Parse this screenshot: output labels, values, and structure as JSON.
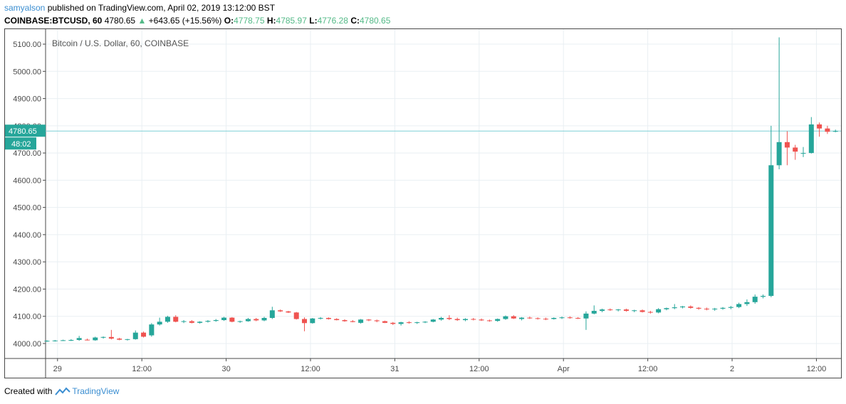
{
  "header": {
    "username": "samyalson",
    "published_text": " published on TradingView.com, April 02, 2019 13:12:00 BST",
    "symbol": "COINBASE:BTCUSD, 60",
    "last_price": "4780.65",
    "change": "+643.65 (+15.56%)",
    "open_label": "O:",
    "open": "4778.75",
    "high_label": "H:",
    "high": "4785.97",
    "low_label": "L:",
    "low": "4776.28",
    "close_label": "C:",
    "close": "4780.65",
    "up_color": "#53b987"
  },
  "footer": {
    "created_with": "Created with",
    "brand": "TradingView",
    "logo_icon": "tradingview-logo-icon"
  },
  "chart_data": {
    "type": "candlestick",
    "title": "Bitcoin / U.S. Dollar, 60, COINBASE",
    "ylim": [
      3945,
      5155
    ],
    "y_ticks": [
      "4000.00",
      "4100.00",
      "4200.00",
      "4300.00",
      "4400.00",
      "4500.00",
      "4600.00",
      "4700.00",
      "4800.00",
      "4900.00",
      "5000.00",
      "5100.00"
    ],
    "x_ticks": [
      {
        "label": "29",
        "hour": 0
      },
      {
        "label": "12:00",
        "hour": 12
      },
      {
        "label": "30",
        "hour": 24
      },
      {
        "label": "12:00",
        "hour": 36
      },
      {
        "label": "31",
        "hour": 48
      },
      {
        "label": "12:00",
        "hour": 60
      },
      {
        "label": "Apr",
        "hour": 72
      },
      {
        "label": "12:00",
        "hour": 84
      },
      {
        "label": "2",
        "hour": 96
      },
      {
        "label": "12:00",
        "hour": 108
      }
    ],
    "x_hour_range": [
      -1.7,
      111.5
    ],
    "last_price_tag": "4780.65",
    "countdown_tag": "48:02",
    "last_price_value": 4780.65,
    "up_color": "#26a69a",
    "down_color": "#ef5350",
    "grid": true,
    "candles_open_high_low_close": [
      [
        4008,
        4012,
        4006,
        4010
      ],
      [
        4010,
        4013,
        4007,
        4011
      ],
      [
        4011,
        4014,
        4009,
        4012
      ],
      [
        4012,
        4016,
        4009,
        4013
      ],
      [
        4013,
        4028,
        4010,
        4020
      ],
      [
        4014,
        4018,
        4011,
        4012
      ],
      [
        4012,
        4025,
        4010,
        4022
      ],
      [
        4022,
        4026,
        4018,
        4024
      ],
      [
        4024,
        4050,
        4015,
        4018
      ],
      [
        4018,
        4021,
        4012,
        4014
      ],
      [
        4014,
        4017,
        4011,
        4016
      ],
      [
        4016,
        4048,
        4014,
        4040
      ],
      [
        4040,
        4044,
        4022,
        4025
      ],
      [
        4030,
        4075,
        4025,
        4070
      ],
      [
        4070,
        4095,
        4066,
        4080
      ],
      [
        4080,
        4102,
        4076,
        4098
      ],
      [
        4098,
        4104,
        4078,
        4080
      ],
      [
        4080,
        4086,
        4075,
        4082
      ],
      [
        4082,
        4086,
        4074,
        4076
      ],
      [
        4076,
        4082,
        4073,
        4080
      ],
      [
        4080,
        4086,
        4077,
        4083
      ],
      [
        4083,
        4090,
        4080,
        4086
      ],
      [
        4086,
        4098,
        4083,
        4095
      ],
      [
        4095,
        4097,
        4078,
        4080
      ],
      [
        4080,
        4084,
        4076,
        4082
      ],
      [
        4082,
        4094,
        4080,
        4090
      ],
      [
        4090,
        4094,
        4082,
        4085
      ],
      [
        4085,
        4098,
        4082,
        4094
      ],
      [
        4094,
        4135,
        4090,
        4122
      ],
      [
        4122,
        4125,
        4116,
        4118
      ],
      [
        4118,
        4120,
        4112,
        4114
      ],
      [
        4114,
        4116,
        4088,
        4090
      ],
      [
        4090,
        4096,
        4045,
        4075
      ],
      [
        4075,
        4094,
        4073,
        4092
      ],
      [
        4092,
        4097,
        4088,
        4094
      ],
      [
        4094,
        4096,
        4088,
        4090
      ],
      [
        4090,
        4093,
        4085,
        4086
      ],
      [
        4086,
        4089,
        4080,
        4082
      ],
      [
        4082,
        4086,
        4078,
        4079
      ],
      [
        4076,
        4090,
        4073,
        4088
      ],
      [
        4088,
        4090,
        4082,
        4085
      ],
      [
        4085,
        4088,
        4078,
        4082
      ],
      [
        4082,
        4084,
        4075,
        4076
      ],
      [
        4076,
        4079,
        4068,
        4072
      ],
      [
        4072,
        4080,
        4066,
        4078
      ],
      [
        4078,
        4082,
        4073,
        4076
      ],
      [
        4076,
        4080,
        4072,
        4078
      ],
      [
        4078,
        4082,
        4075,
        4080
      ],
      [
        4080,
        4090,
        4078,
        4088
      ],
      [
        4088,
        4098,
        4084,
        4094
      ],
      [
        4094,
        4104,
        4086,
        4090
      ],
      [
        4090,
        4095,
        4083,
        4086
      ],
      [
        4086,
        4093,
        4082,
        4090
      ],
      [
        4090,
        4094,
        4085,
        4088
      ],
      [
        4088,
        4092,
        4083,
        4085
      ],
      [
        4085,
        4088,
        4080,
        4083
      ],
      [
        4083,
        4092,
        4080,
        4090
      ],
      [
        4090,
        4103,
        4087,
        4100
      ],
      [
        4100,
        4104,
        4090,
        4092
      ],
      [
        4090,
        4097,
        4085,
        4095
      ],
      [
        4095,
        4099,
        4090,
        4093
      ],
      [
        4093,
        4096,
        4088,
        4091
      ],
      [
        4091,
        4095,
        4086,
        4090
      ],
      [
        4090,
        4096,
        4088,
        4094
      ],
      [
        4094,
        4099,
        4090,
        4096
      ],
      [
        4096,
        4100,
        4091,
        4094
      ],
      [
        4094,
        4097,
        4090,
        4092
      ],
      [
        4092,
        4118,
        4050,
        4110
      ],
      [
        4110,
        4140,
        4107,
        4120
      ],
      [
        4120,
        4128,
        4115,
        4125
      ],
      [
        4125,
        4129,
        4120,
        4123
      ],
      [
        4123,
        4127,
        4118,
        4125
      ],
      [
        4125,
        4128,
        4117,
        4120
      ],
      [
        4120,
        4124,
        4115,
        4122
      ],
      [
        4122,
        4125,
        4114,
        4116
      ],
      [
        4116,
        4120,
        4110,
        4114
      ],
      [
        4114,
        4130,
        4111,
        4126
      ],
      [
        4126,
        4132,
        4122,
        4130
      ],
      [
        4130,
        4145,
        4126,
        4133
      ],
      [
        4133,
        4138,
        4129,
        4136
      ],
      [
        4136,
        4140,
        4128,
        4131
      ],
      [
        4131,
        4134,
        4124,
        4128
      ],
      [
        4128,
        4132,
        4122,
        4126
      ],
      [
        4126,
        4131,
        4120,
        4128
      ],
      [
        4128,
        4134,
        4124,
        4131
      ],
      [
        4131,
        4138,
        4126,
        4134
      ],
      [
        4134,
        4150,
        4130,
        4145
      ],
      [
        4145,
        4162,
        4138,
        4152
      ],
      [
        4152,
        4180,
        4146,
        4172
      ],
      [
        4172,
        4180,
        4166,
        4175
      ],
      [
        4175,
        4800,
        4170,
        4655
      ],
      [
        4655,
        5125,
        4640,
        4740
      ],
      [
        4740,
        4780,
        4655,
        4720
      ],
      [
        4720,
        4730,
        4675,
        4705
      ],
      [
        4700,
        4722,
        4685,
        4700
      ],
      [
        4700,
        4832,
        4698,
        4805
      ],
      [
        4805,
        4812,
        4760,
        4790
      ],
      [
        4790,
        4800,
        4770,
        4778
      ],
      [
        4778.75,
        4785.97,
        4776.28,
        4780.65
      ]
    ]
  }
}
